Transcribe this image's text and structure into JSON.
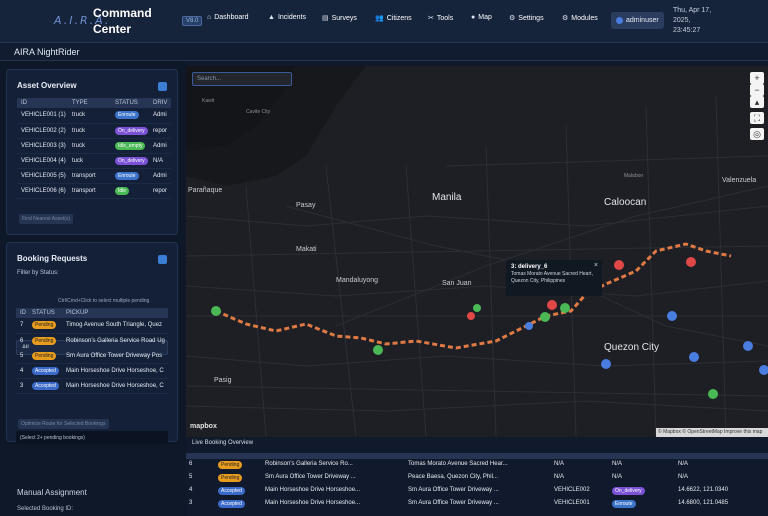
{
  "header": {
    "logo": "A.I.R.A.",
    "brand_line1": "Command",
    "brand_line2": "Center",
    "version": "V8.0",
    "nav": [
      {
        "label": "Dashboard",
        "icon": "home-icon"
      },
      {
        "label": "Incidents",
        "icon": "warning-icon"
      },
      {
        "label": "Surveys",
        "icon": "clipboard-icon"
      },
      {
        "label": "Citizens",
        "icon": "users-icon"
      },
      {
        "label": "Tools",
        "icon": "tools-icon"
      },
      {
        "label": "Map",
        "icon": "map-pin-icon"
      },
      {
        "label": "Settings",
        "icon": "gear-icon"
      },
      {
        "label": "Modules",
        "icon": "gear-icon"
      }
    ],
    "user": "adminuser",
    "clock_line1": "Thu, Apr 17,",
    "clock_line2": "2025,",
    "clock_line3": "23:45:27"
  },
  "subheader": {
    "title": "AIRA NightRider"
  },
  "assets": {
    "title": "Asset Overview",
    "columns": [
      "ID",
      "TYPE",
      "STATUS",
      "DRIV"
    ],
    "rows": [
      {
        "id": "VEHICLE001",
        "num": "(1)",
        "type": "truck",
        "status": "Enroute",
        "driver": "Admi"
      },
      {
        "id": "VEHICLE002",
        "num": "(2)",
        "type": "truck",
        "status": "On_delivery",
        "driver": "repor"
      },
      {
        "id": "VEHICLE003",
        "num": "(3)",
        "type": "truck",
        "status": "Idle_empty",
        "driver": "Admi"
      },
      {
        "id": "VEHICLE004",
        "num": "(4)",
        "type": "tuck",
        "status": "On_delivery",
        "driver": "N/A"
      },
      {
        "id": "VEHICLE005",
        "num": "(5)",
        "type": "transport",
        "status": "Enroute",
        "driver": "Admi"
      },
      {
        "id": "VEHICLE006",
        "num": "(6)",
        "type": "transport",
        "status": "Idle",
        "driver": "repor"
      }
    ],
    "find_button": "Find Nearest Asset(s)"
  },
  "bookings": {
    "title": "Booking Requests",
    "filter_label": "Filter by Status:",
    "filter_value": "All",
    "hint": "Ctrl/Cmd+Click to select multiple pending",
    "columns": [
      "ID",
      "STATUS",
      "PICKUP"
    ],
    "rows": [
      {
        "id": "7",
        "status": "Pending",
        "pickup": "Timog Avenue South Triangle, Quez"
      },
      {
        "id": "6",
        "status": "Pending",
        "pickup": "Robinson's Galleria Service Road Ug"
      },
      {
        "id": "5",
        "status": "Pending",
        "pickup": "Sm Aura Office Tower Driveway Pos"
      },
      {
        "id": "4",
        "status": "Accepted",
        "pickup": "Main Horseshoe Drive Horseshoe, C"
      },
      {
        "id": "3",
        "status": "Accepted",
        "pickup": "Main Horseshoe Drive Horseshoe, C"
      }
    ],
    "optimize_button": "Optimize Route for Selected Bookings",
    "optimize_hint": "(Select 2+ pending bookings)"
  },
  "manual": {
    "title": "Manual Assignment",
    "selected_label": "Selected Booking ID:"
  },
  "map": {
    "search_placeholder": "Search...",
    "attribution_logo": "mapbox",
    "attribution": "© Mapbox © OpenStreetMap  Improve this map",
    "places": [
      "Kawit",
      "Cavite City",
      "Parañaque",
      "Pasay",
      "Manila",
      "Caloocan",
      "Valenzuela",
      "Makati",
      "Mandaluyong",
      "San Juan",
      "Quezon City",
      "Pasig",
      "Malabon"
    ],
    "popup_title": "3: delivery_6",
    "popup_line1": "Tomas Morato Avenue Sacred Heart,",
    "popup_line2": "Quezon City, Philippines"
  },
  "live": {
    "title": "Live Booking Overview",
    "rows": [
      {
        "id": "6",
        "status": "Pending",
        "pickup": "Robinson's Galleria Service Ro...",
        "dropoff": "Tomas Morato Avenue Sacred Hear...",
        "vehicle": "N/A",
        "vstatus": "N/A",
        "coords": "N/A"
      },
      {
        "id": "5",
        "status": "Pending",
        "pickup": "Sm Aura Office Tower Driveway ...",
        "dropoff": "Peace Baesa, Quezon City, Phil...",
        "vehicle": "N/A",
        "vstatus": "N/A",
        "coords": "N/A"
      },
      {
        "id": "4",
        "status": "Accepted",
        "pickup": "Main Horseshoe Drive Horseshoe...",
        "dropoff": "Sm Aura Office Tower Driveway ...",
        "vehicle": "VEHICLE002",
        "vstatus": "On_delivery",
        "coords": "14.6622, 121.0340"
      },
      {
        "id": "3",
        "status": "Accepted",
        "pickup": "Main Horseshoe Drive Horseshoe...",
        "dropoff": "Sm Aura Office Tower Driveway ...",
        "vehicle": "VEHICLE001",
        "vstatus": "Enroute",
        "coords": "14.6800, 121.0485"
      }
    ]
  }
}
